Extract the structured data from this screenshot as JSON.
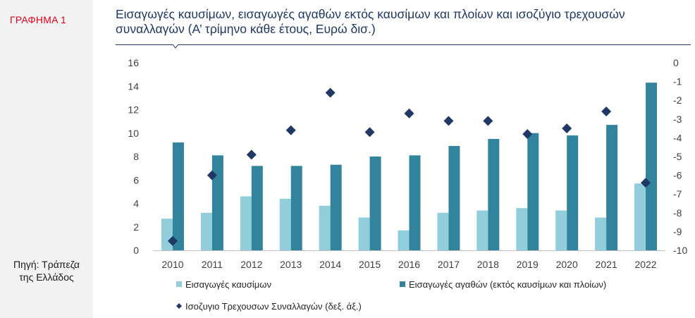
{
  "side": {
    "figure_label": "ΓΡΑΦΗΜΑ 1",
    "source_line1": "Πηγή: Τράπεζα",
    "source_line2": "της Ελλάδος"
  },
  "chart_data": {
    "type": "bar",
    "title_line1": "Εισαγωγές καυσίμων, εισαγωγές αγαθών εκτός καυσίμων και πλοίων και ισοζύγιο τρεχουσών",
    "title_line2": "συναλλαγών (Α’ τρίμηνο κάθε έτους, Ευρώ δισ.)",
    "categories": [
      "2010",
      "2011",
      "2012",
      "2013",
      "2014",
      "2015",
      "2016",
      "2017",
      "2018",
      "2019",
      "2020",
      "2021",
      "2022"
    ],
    "series": [
      {
        "name": "Εισαγωγές καυσίμων",
        "axis": "left",
        "kind": "bar",
        "color": "#92cddc",
        "values": [
          2.7,
          3.2,
          4.6,
          4.4,
          3.8,
          2.8,
          1.7,
          3.2,
          3.4,
          3.6,
          3.4,
          2.8,
          5.7
        ]
      },
      {
        "name": "Εισαγωγές αγαθών (εκτός καυσίμων και πλοίων)",
        "axis": "left",
        "kind": "bar",
        "color": "#31849b",
        "values": [
          9.2,
          8.1,
          7.2,
          7.2,
          7.3,
          8.0,
          8.1,
          8.9,
          9.5,
          10.0,
          9.8,
          10.7,
          14.3
        ]
      },
      {
        "name": "Ισοζυγιο Τρεχουσων Συναλλαγών (δεξ. άξ.)",
        "axis": "right",
        "kind": "scatter",
        "color": "#1f3864",
        "values": [
          -9.5,
          -6.0,
          -4.9,
          -3.6,
          -1.6,
          -3.7,
          -2.7,
          -3.1,
          -3.1,
          -3.8,
          -3.5,
          -2.6,
          -6.4
        ]
      }
    ],
    "y_left": {
      "min": 0,
      "max": 16,
      "ticks": [
        "0",
        "2",
        "4",
        "6",
        "8",
        "10",
        "12",
        "14",
        "16"
      ]
    },
    "y_right": {
      "min": -10,
      "max": 0,
      "ticks": [
        "0",
        "-1",
        "-2",
        "-3",
        "-4",
        "-5",
        "-6",
        "-7",
        "-8",
        "-9",
        "-10"
      ]
    },
    "legend_position": "bottom"
  }
}
